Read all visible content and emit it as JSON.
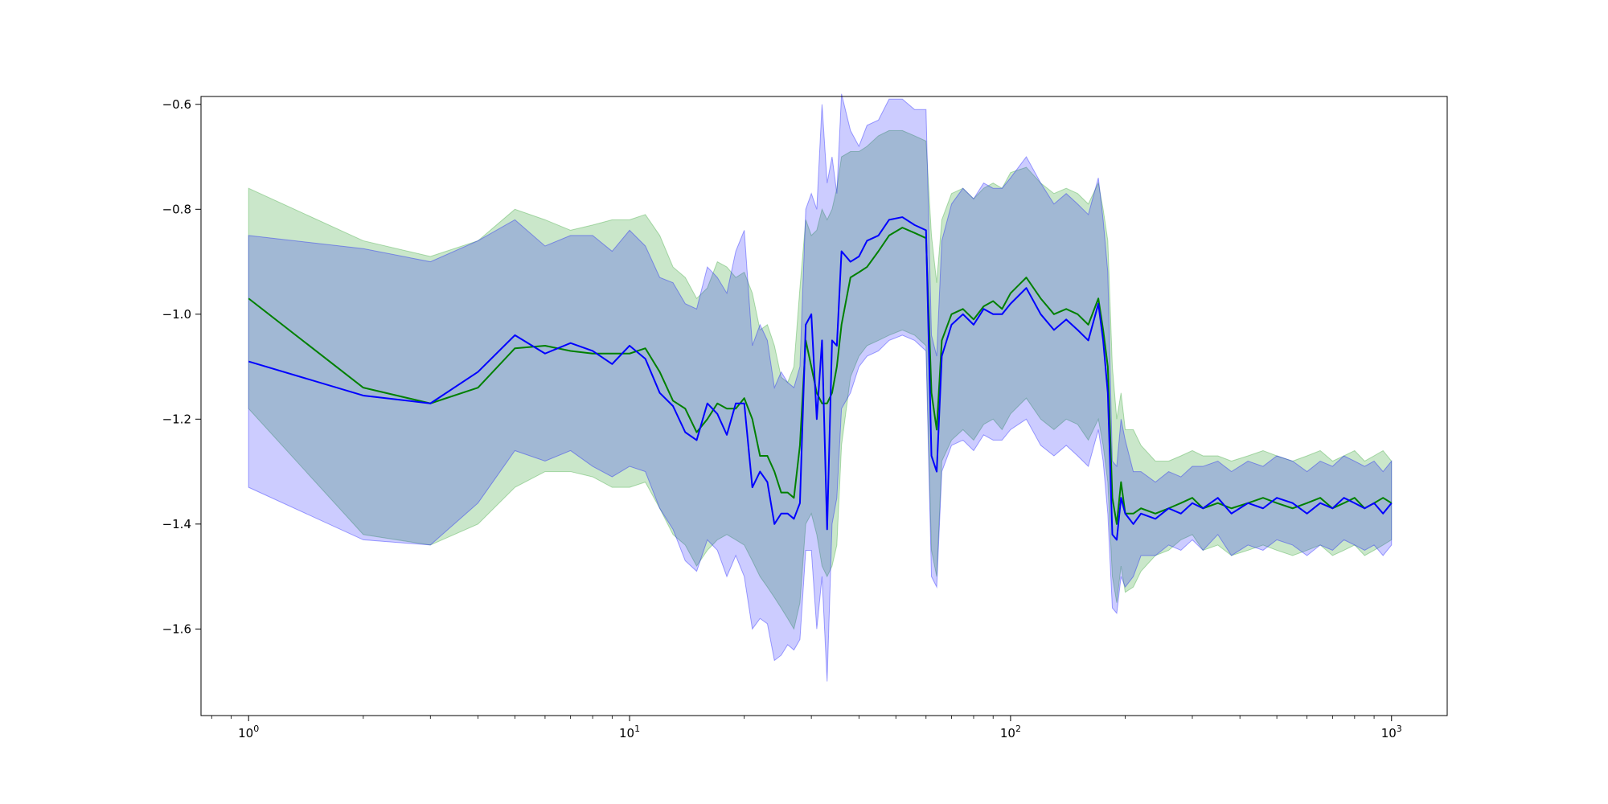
{
  "chart_data": {
    "type": "line",
    "title": "",
    "xlabel": "",
    "ylabel": "",
    "xscale": "log",
    "xlim": [
      0.75,
      1400
    ],
    "ylim": [
      -1.765,
      -0.585
    ],
    "grid": false,
    "x_tick_labels": [
      {
        "value": 1,
        "base": "10",
        "exp": "0"
      },
      {
        "value": 10,
        "base": "10",
        "exp": "1"
      },
      {
        "value": 100,
        "base": "10",
        "exp": "2"
      },
      {
        "value": 1000,
        "base": "10",
        "exp": "3"
      }
    ],
    "y_ticks": [
      -1.6,
      -1.4,
      -1.2,
      -1.0,
      -0.8,
      -0.6
    ],
    "y_tick_labels": [
      "−1.6",
      "−1.4",
      "−1.2",
      "−1.0",
      "−0.8",
      "−0.6"
    ],
    "colors": {
      "green_line": "#008000",
      "blue_line": "#0000ff",
      "green_band": "#2ca02c",
      "blue_band": "#0000ff"
    },
    "series": [
      {
        "color": "green",
        "x": [
          1,
          2,
          3,
          4,
          5,
          6,
          7,
          8,
          9,
          10,
          11,
          12,
          13,
          14,
          15,
          16,
          17,
          18,
          19,
          20,
          21,
          22,
          23,
          24,
          25,
          26,
          27,
          28,
          29,
          30,
          31,
          32,
          33,
          34,
          35,
          36,
          38,
          40,
          42,
          45,
          48,
          52,
          56,
          60,
          62,
          64,
          66,
          70,
          75,
          80,
          85,
          90,
          95,
          100,
          110,
          120,
          130,
          140,
          150,
          160,
          170,
          175,
          180,
          185,
          190,
          195,
          200,
          210,
          220,
          240,
          260,
          280,
          300,
          320,
          350,
          380,
          420,
          460,
          500,
          550,
          600,
          650,
          700,
          750,
          800,
          850,
          900,
          950,
          1000
        ],
        "y": [
          -0.97,
          -1.14,
          -1.17,
          -1.14,
          -1.065,
          -1.06,
          -1.07,
          -1.075,
          -1.075,
          -1.075,
          -1.065,
          -1.11,
          -1.165,
          -1.18,
          -1.225,
          -1.2,
          -1.17,
          -1.18,
          -1.18,
          -1.16,
          -1.2,
          -1.27,
          -1.27,
          -1.3,
          -1.34,
          -1.34,
          -1.35,
          -1.25,
          -1.05,
          -1.1,
          -1.15,
          -1.17,
          -1.17,
          -1.15,
          -1.1,
          -1.02,
          -0.93,
          -0.92,
          -0.91,
          -0.88,
          -0.85,
          -0.835,
          -0.845,
          -0.855,
          -1.15,
          -1.22,
          -1.05,
          -1.0,
          -0.99,
          -1.01,
          -0.985,
          -0.975,
          -0.99,
          -0.96,
          -0.93,
          -0.97,
          -1.0,
          -0.99,
          -1.0,
          -1.02,
          -0.97,
          -1.03,
          -1.1,
          -1.35,
          -1.4,
          -1.32,
          -1.38,
          -1.38,
          -1.37,
          -1.38,
          -1.37,
          -1.36,
          -1.35,
          -1.37,
          -1.36,
          -1.37,
          -1.36,
          -1.35,
          -1.36,
          -1.37,
          -1.36,
          -1.35,
          -1.37,
          -1.36,
          -1.35,
          -1.37,
          -1.36,
          -1.35,
          -1.36
        ],
        "lower": [
          -1.18,
          -1.42,
          -1.44,
          -1.4,
          -1.33,
          -1.3,
          -1.3,
          -1.31,
          -1.33,
          -1.33,
          -1.32,
          -1.37,
          -1.42,
          -1.44,
          -1.48,
          -1.45,
          -1.43,
          -1.42,
          -1.43,
          -1.44,
          -1.47,
          -1.5,
          -1.52,
          -1.54,
          -1.56,
          -1.58,
          -1.6,
          -1.55,
          -1.4,
          -1.38,
          -1.42,
          -1.48,
          -1.5,
          -1.48,
          -1.44,
          -1.25,
          -1.12,
          -1.08,
          -1.06,
          -1.05,
          -1.04,
          -1.03,
          -1.04,
          -1.06,
          -1.45,
          -1.5,
          -1.28,
          -1.24,
          -1.22,
          -1.24,
          -1.21,
          -1.2,
          -1.22,
          -1.19,
          -1.16,
          -1.2,
          -1.22,
          -1.2,
          -1.21,
          -1.24,
          -1.2,
          -1.25,
          -1.32,
          -1.5,
          -1.55,
          -1.48,
          -1.53,
          -1.52,
          -1.49,
          -1.46,
          -1.45,
          -1.43,
          -1.42,
          -1.45,
          -1.44,
          -1.46,
          -1.45,
          -1.44,
          -1.45,
          -1.46,
          -1.45,
          -1.44,
          -1.46,
          -1.45,
          -1.44,
          -1.46,
          -1.45,
          -1.44,
          -1.43
        ],
        "upper": [
          -0.76,
          -0.86,
          -0.89,
          -0.86,
          -0.8,
          -0.82,
          -0.84,
          -0.83,
          -0.82,
          -0.82,
          -0.81,
          -0.85,
          -0.91,
          -0.93,
          -0.97,
          -0.95,
          -0.9,
          -0.91,
          -0.93,
          -0.92,
          -0.96,
          -1.03,
          -1.02,
          -1.06,
          -1.12,
          -1.13,
          -1.1,
          -0.95,
          -0.82,
          -0.85,
          -0.84,
          -0.8,
          -0.82,
          -0.8,
          -0.76,
          -0.7,
          -0.69,
          -0.69,
          -0.68,
          -0.66,
          -0.65,
          -0.65,
          -0.66,
          -0.67,
          -0.85,
          -0.94,
          -0.82,
          -0.77,
          -0.76,
          -0.78,
          -0.76,
          -0.75,
          -0.76,
          -0.73,
          -0.72,
          -0.75,
          -0.77,
          -0.76,
          -0.77,
          -0.79,
          -0.75,
          -0.8,
          -0.86,
          -1.1,
          -1.2,
          -1.15,
          -1.22,
          -1.22,
          -1.25,
          -1.28,
          -1.28,
          -1.27,
          -1.26,
          -1.27,
          -1.27,
          -1.28,
          -1.27,
          -1.26,
          -1.27,
          -1.28,
          -1.27,
          -1.26,
          -1.28,
          -1.27,
          -1.26,
          -1.28,
          -1.27,
          -1.26,
          -1.28
        ]
      },
      {
        "color": "blue",
        "x": [
          1,
          2,
          3,
          4,
          5,
          6,
          7,
          8,
          9,
          10,
          11,
          12,
          13,
          14,
          15,
          16,
          17,
          18,
          19,
          20,
          21,
          22,
          23,
          24,
          25,
          26,
          27,
          28,
          29,
          30,
          31,
          32,
          33,
          34,
          35,
          36,
          38,
          40,
          42,
          45,
          48,
          52,
          56,
          60,
          62,
          64,
          66,
          70,
          75,
          80,
          85,
          90,
          95,
          100,
          110,
          120,
          130,
          140,
          150,
          160,
          170,
          175,
          180,
          185,
          190,
          195,
          200,
          210,
          220,
          240,
          260,
          280,
          300,
          320,
          350,
          380,
          420,
          460,
          500,
          550,
          600,
          650,
          700,
          750,
          800,
          850,
          900,
          950,
          1000
        ],
        "y": [
          -1.09,
          -1.155,
          -1.17,
          -1.11,
          -1.04,
          -1.075,
          -1.055,
          -1.07,
          -1.095,
          -1.06,
          -1.085,
          -1.15,
          -1.175,
          -1.225,
          -1.24,
          -1.17,
          -1.19,
          -1.23,
          -1.17,
          -1.17,
          -1.33,
          -1.3,
          -1.32,
          -1.4,
          -1.38,
          -1.38,
          -1.39,
          -1.36,
          -1.02,
          -1.0,
          -1.2,
          -1.05,
          -1.41,
          -1.05,
          -1.06,
          -0.88,
          -0.9,
          -0.89,
          -0.86,
          -0.85,
          -0.82,
          -0.815,
          -0.83,
          -0.84,
          -1.27,
          -1.3,
          -1.08,
          -1.02,
          -1.0,
          -1.02,
          -0.99,
          -1.0,
          -1.0,
          -0.98,
          -0.95,
          -1.0,
          -1.03,
          -1.01,
          -1.03,
          -1.05,
          -0.98,
          -1.05,
          -1.15,
          -1.42,
          -1.43,
          -1.35,
          -1.38,
          -1.4,
          -1.38,
          -1.39,
          -1.37,
          -1.38,
          -1.36,
          -1.37,
          -1.35,
          -1.38,
          -1.36,
          -1.37,
          -1.35,
          -1.36,
          -1.38,
          -1.36,
          -1.37,
          -1.35,
          -1.36,
          -1.37,
          -1.36,
          -1.38,
          -1.36
        ],
        "lower": [
          -1.33,
          -1.43,
          -1.44,
          -1.36,
          -1.26,
          -1.28,
          -1.26,
          -1.29,
          -1.31,
          -1.29,
          -1.3,
          -1.37,
          -1.41,
          -1.47,
          -1.49,
          -1.43,
          -1.45,
          -1.5,
          -1.46,
          -1.5,
          -1.6,
          -1.58,
          -1.59,
          -1.66,
          -1.65,
          -1.63,
          -1.64,
          -1.62,
          -1.45,
          -1.45,
          -1.6,
          -1.5,
          -1.7,
          -1.4,
          -1.35,
          -1.18,
          -1.15,
          -1.1,
          -1.08,
          -1.07,
          -1.05,
          -1.04,
          -1.05,
          -1.07,
          -1.5,
          -1.52,
          -1.3,
          -1.25,
          -1.24,
          -1.26,
          -1.23,
          -1.24,
          -1.24,
          -1.22,
          -1.2,
          -1.25,
          -1.27,
          -1.25,
          -1.27,
          -1.29,
          -1.22,
          -1.28,
          -1.38,
          -1.56,
          -1.57,
          -1.5,
          -1.52,
          -1.5,
          -1.46,
          -1.46,
          -1.44,
          -1.45,
          -1.43,
          -1.45,
          -1.42,
          -1.46,
          -1.44,
          -1.45,
          -1.43,
          -1.44,
          -1.46,
          -1.44,
          -1.45,
          -1.43,
          -1.44,
          -1.45,
          -1.44,
          -1.46,
          -1.44
        ],
        "upper": [
          -0.85,
          -0.875,
          -0.9,
          -0.86,
          -0.82,
          -0.87,
          -0.85,
          -0.85,
          -0.88,
          -0.84,
          -0.87,
          -0.93,
          -0.94,
          -0.98,
          -0.99,
          -0.91,
          -0.93,
          -0.96,
          -0.88,
          -0.84,
          -1.06,
          -1.02,
          -1.05,
          -1.14,
          -1.11,
          -1.13,
          -1.14,
          -1.1,
          -0.8,
          -0.77,
          -0.8,
          -0.6,
          -0.75,
          -0.7,
          -0.77,
          -0.58,
          -0.65,
          -0.68,
          -0.64,
          -0.63,
          -0.59,
          -0.59,
          -0.61,
          -0.61,
          -1.04,
          -1.08,
          -0.86,
          -0.79,
          -0.76,
          -0.78,
          -0.75,
          -0.76,
          -0.76,
          -0.74,
          -0.7,
          -0.75,
          -0.79,
          -0.77,
          -0.79,
          -0.81,
          -0.74,
          -0.82,
          -0.92,
          -1.28,
          -1.29,
          -1.2,
          -1.24,
          -1.3,
          -1.3,
          -1.32,
          -1.3,
          -1.31,
          -1.29,
          -1.29,
          -1.28,
          -1.3,
          -1.28,
          -1.29,
          -1.27,
          -1.28,
          -1.3,
          -1.28,
          -1.29,
          -1.27,
          -1.28,
          -1.29,
          -1.28,
          -1.3,
          -1.28
        ]
      }
    ]
  }
}
